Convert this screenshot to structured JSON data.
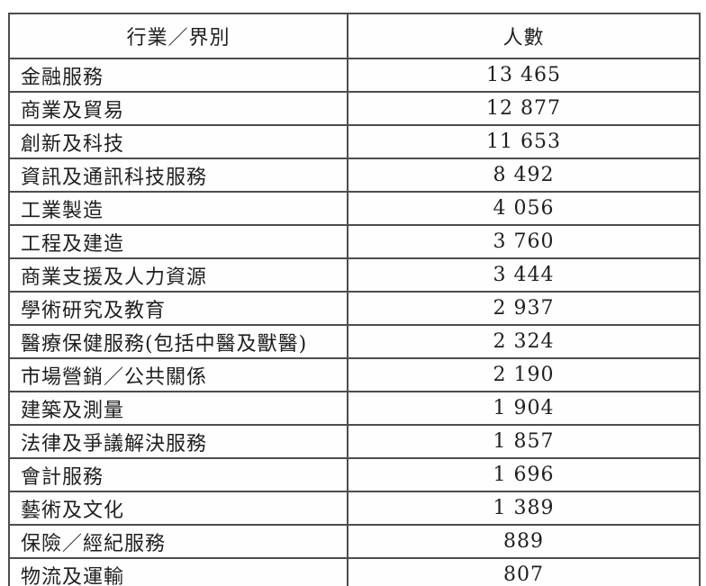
{
  "table": {
    "columns": {
      "industry": "行業／界別",
      "count": "人數"
    },
    "rows": [
      {
        "industry": "金融服務",
        "count": "13 465"
      },
      {
        "industry": "商業及貿易",
        "count": "12 877"
      },
      {
        "industry": "創新及科技",
        "count": "11 653"
      },
      {
        "industry": "資訊及通訊科技服務",
        "count": "8 492"
      },
      {
        "industry": "工業製造",
        "count": "4 056"
      },
      {
        "industry": "工程及建造",
        "count": "3 760"
      },
      {
        "industry": "商業支援及人力資源",
        "count": "3 444"
      },
      {
        "industry": "學術研究及教育",
        "count": "2 937"
      },
      {
        "industry": "醫療保健服務(包括中醫及獸醫)",
        "count": "2 324"
      },
      {
        "industry": "市場營銷／公共關係",
        "count": "2 190"
      },
      {
        "industry": "建築及測量",
        "count": "1 904"
      },
      {
        "industry": "法律及爭議解決服務",
        "count": "1 857"
      },
      {
        "industry": "會計服務",
        "count": "1 696"
      },
      {
        "industry": "藝術及文化",
        "count": "1 389"
      },
      {
        "industry": "保險／經紀服務",
        "count": "889"
      },
      {
        "industry": "物流及運輸",
        "count": "807"
      }
    ],
    "colors": {
      "border": "#4d4d4d",
      "text": "#1f1f1f",
      "background": "#ffffff"
    }
  }
}
